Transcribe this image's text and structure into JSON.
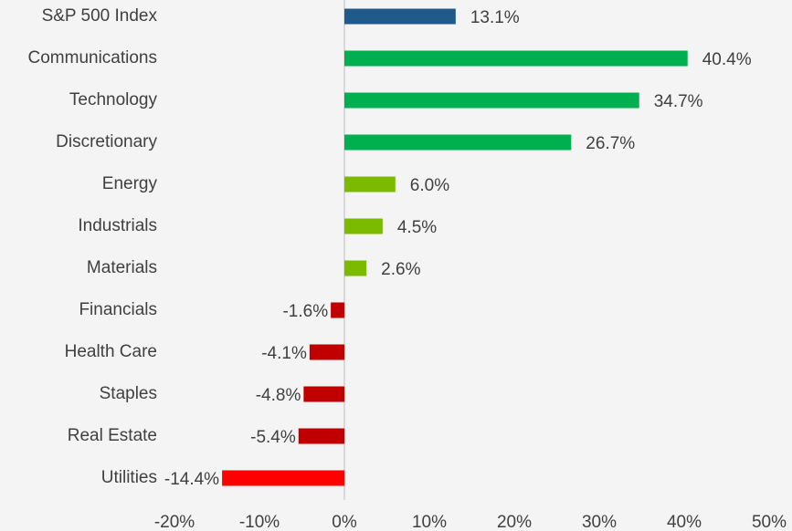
{
  "chart_data": {
    "type": "hbar",
    "categories": [
      "S&P 500 Index",
      "Communications",
      "Technology",
      "Discretionary",
      "Energy",
      "Industrials",
      "Materials",
      "Financials",
      "Health Care",
      "Staples",
      "Real Estate",
      "Utilities"
    ],
    "values": [
      13.1,
      40.4,
      34.7,
      26.7,
      6.0,
      4.5,
      2.6,
      -1.6,
      -4.1,
      -4.8,
      -5.4,
      -14.4
    ],
    "value_labels": [
      "13.1%",
      "40.4%",
      "34.7%",
      "26.7%",
      "6.0%",
      "4.5%",
      "2.6%",
      "-1.6%",
      "-4.1%",
      "-4.8%",
      "-5.4%",
      "-14.4%"
    ],
    "colors": [
      "#1f5a8a",
      "#00b050",
      "#00b050",
      "#00b050",
      "#7cba00",
      "#7cba00",
      "#7cba00",
      "#c00000",
      "#c00000",
      "#c00000",
      "#c00000",
      "#ff0000"
    ],
    "xlim": [
      -20,
      50
    ],
    "xticks": [
      {
        "value": -20,
        "label": "-20%"
      },
      {
        "value": -10,
        "label": "-10%"
      },
      {
        "value": 0,
        "label": "0%"
      },
      {
        "value": 10,
        "label": "10%"
      },
      {
        "value": 20,
        "label": "20%"
      },
      {
        "value": 30,
        "label": "30%"
      },
      {
        "value": 40,
        "label": "40%"
      },
      {
        "value": 50,
        "label": "50%"
      }
    ],
    "grid": false
  }
}
